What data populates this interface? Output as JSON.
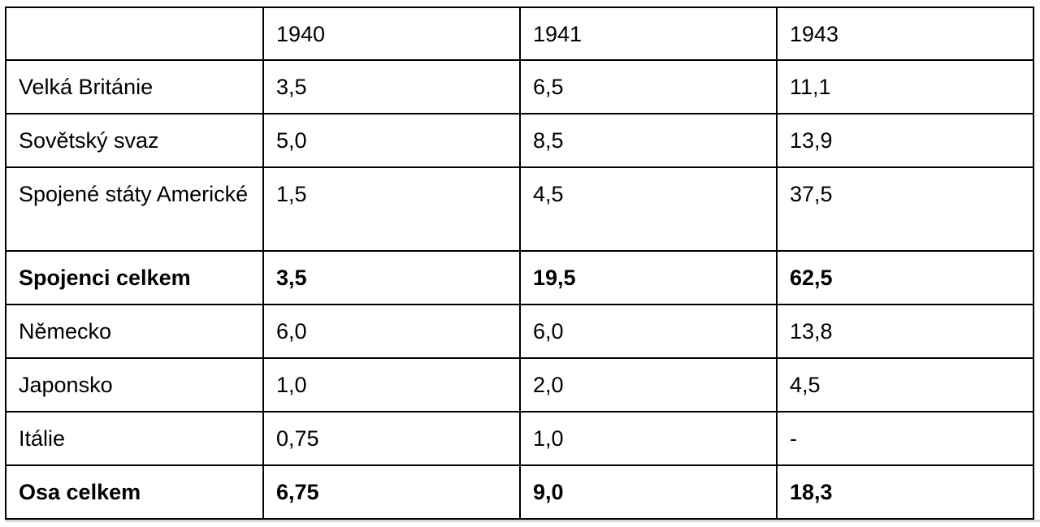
{
  "table": {
    "header": [
      "",
      "1940",
      "1941",
      "1943"
    ],
    "rows": [
      {
        "label": "Velká Británie",
        "values": [
          "3,5",
          "6,5",
          "11,1"
        ],
        "bold": false
      },
      {
        "label": "Sovětský svaz",
        "values": [
          "5,0",
          "8,5",
          "13,9"
        ],
        "bold": false
      },
      {
        "label": "Spojené státy Americké",
        "values": [
          "1,5",
          "4,5",
          "37,5"
        ],
        "bold": false
      },
      {
        "label": "Spojenci celkem",
        "values": [
          "3,5",
          "19,5",
          "62,5"
        ],
        "bold": true
      },
      {
        "label": "Německo",
        "values": [
          "6,0",
          "6,0",
          "13,8"
        ],
        "bold": false
      },
      {
        "label": "Japonsko",
        "values": [
          "1,0",
          "2,0",
          "4,5"
        ],
        "bold": false
      },
      {
        "label": "Itálie",
        "values": [
          "0,75",
          "1,0",
          "-"
        ],
        "bold": false
      },
      {
        "label": "Osa celkem",
        "values": [
          "6,75",
          "9,0",
          "18,3"
        ],
        "bold": true
      }
    ]
  },
  "colors": {
    "border": "#000000",
    "text": "#000000",
    "background": "#ffffff"
  }
}
